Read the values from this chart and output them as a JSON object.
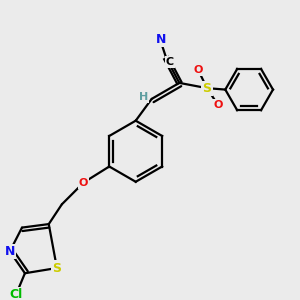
{
  "bg_color": "#ebebeb",
  "atom_colors": {
    "C": "#000000",
    "N": "#1010ee",
    "O": "#ee1010",
    "S": "#cccc00",
    "Cl": "#00bb00",
    "H": "#5f9ea0"
  },
  "bond_color": "#000000"
}
